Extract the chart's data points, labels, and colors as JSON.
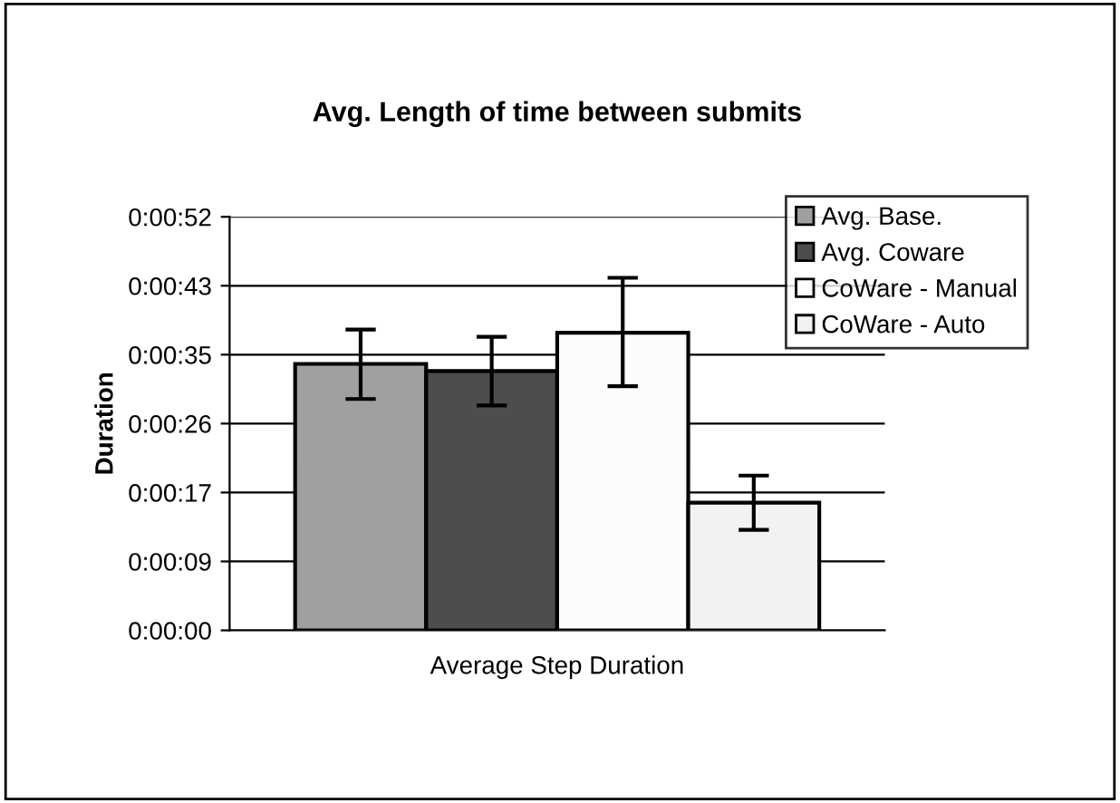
{
  "chart_data": {
    "type": "bar",
    "title": "Avg. Length of time between submits",
    "ylabel": "Duration",
    "categories": [
      "Average Step Duration"
    ],
    "series": [
      {
        "name": "Avg. Base.",
        "color": "#a0a0a0",
        "values": [
          33.4
        ],
        "errors": [
          [
            29.0,
            37.7
          ]
        ]
      },
      {
        "name": "Avg. Coware",
        "color": "#4d4d4d",
        "values": [
          32.5
        ],
        "errors": [
          [
            28.2,
            36.8
          ]
        ]
      },
      {
        "name": "CoWare - Manual",
        "color": "#fcfcfc",
        "values": [
          37.3
        ],
        "errors": [
          [
            30.6,
            44.2
          ]
        ]
      },
      {
        "name": "CoWare - Auto",
        "color": "#f2f2f2",
        "values": [
          16.0
        ],
        "errors": [
          [
            12.6,
            19.4
          ]
        ]
      }
    ],
    "ylim": [
      0,
      51.84
    ],
    "yticks": [
      {
        "value": 0,
        "label": "0:00:00"
      },
      {
        "value": 8.64,
        "label": "0:00:09"
      },
      {
        "value": 17.28,
        "label": "0:00:17"
      },
      {
        "value": 25.92,
        "label": "0:00:26"
      },
      {
        "value": 34.56,
        "label": "0:00:35"
      },
      {
        "value": 43.2,
        "label": "0:00:43"
      },
      {
        "value": 51.84,
        "label": "0:00:52"
      }
    ],
    "grid": "y",
    "legend": "top right"
  }
}
